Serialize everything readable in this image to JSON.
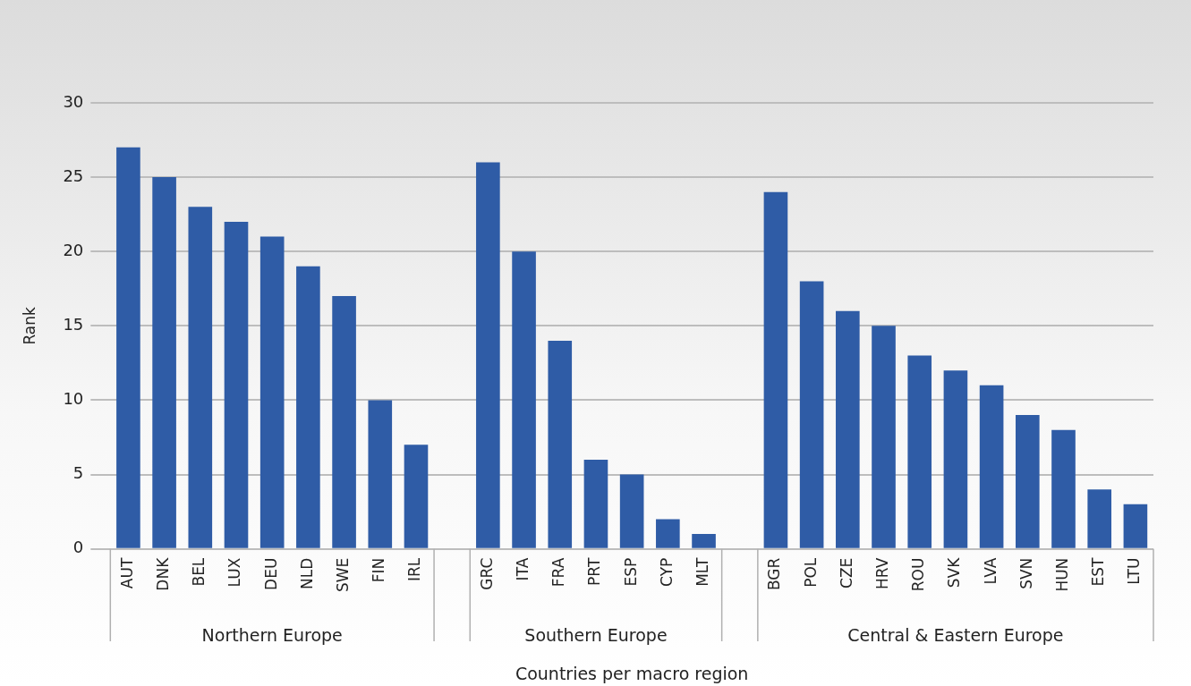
{
  "chart_data": {
    "type": "bar",
    "ylabel": "Rank",
    "xlabel": "Countries per macro region",
    "categories": [
      "AUT",
      "DNK",
      "BEL",
      "LUX",
      "DEU",
      "NLD",
      "SWE",
      "FIN",
      "IRL",
      null,
      "GRC",
      "ITA",
      "FRA",
      "PRT",
      "ESP",
      "CYP",
      "MLT",
      null,
      "BGR",
      "POL",
      "CZE",
      "HRV",
      "ROU",
      "SVK",
      "LVA",
      "SVN",
      "HUN",
      "EST",
      "LTU"
    ],
    "values": [
      27,
      25,
      23,
      22,
      21,
      19,
      17,
      10,
      7,
      null,
      26,
      20,
      14,
      6,
      5,
      2,
      1,
      null,
      24,
      18,
      16,
      15,
      13,
      12,
      11,
      9,
      8,
      4,
      3
    ],
    "color": "#2f5ca6",
    "ylim": [
      0,
      30
    ],
    "yticks": [
      0,
      5,
      10,
      15,
      20,
      25,
      30
    ],
    "grid": "y",
    "legend": false,
    "annotations": [
      "Northern Europe",
      "Southern Europe",
      "Central & Eastern Europe"
    ]
  }
}
